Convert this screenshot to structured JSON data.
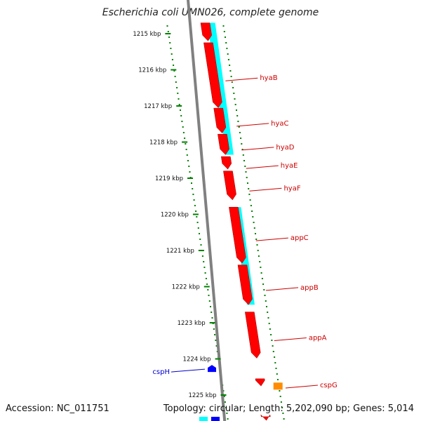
{
  "title": "Escherichia coli UMN026, complete genome",
  "footer": {
    "accession": "Accession: NC_011751",
    "summary": "Topology: circular; Length: 5,202,090 bp; Genes: 5,014"
  },
  "colors": {
    "cds": "#ff0000",
    "cds_alt": "#ff8c00",
    "blast_hit": "#00ffff",
    "blue_feature": "#0000ff",
    "backbone": "#808080",
    "ticks": "#008000",
    "label": "#cc0000",
    "label_alt": "#0000cc"
  },
  "scale": {
    "start_kbp": 1214.8,
    "end_kbp": 1225.7,
    "ticks": [
      {
        "kbp": 1215,
        "label": "1215 kbp"
      },
      {
        "kbp": 1216,
        "label": "1216 kbp"
      },
      {
        "kbp": 1217,
        "label": "1217 kbp"
      },
      {
        "kbp": 1218,
        "label": "1218 kbp"
      },
      {
        "kbp": 1219,
        "label": "1219 kbp"
      },
      {
        "kbp": 1220,
        "label": "1220 kbp"
      },
      {
        "kbp": 1221,
        "label": "1221 kbp"
      },
      {
        "kbp": 1222,
        "label": "1222 kbp"
      },
      {
        "kbp": 1223,
        "label": "1223 kbp"
      },
      {
        "kbp": 1224,
        "label": "1224 kbp"
      },
      {
        "kbp": 1225,
        "label": "1225 kbp"
      }
    ]
  },
  "genes": [
    {
      "name": "",
      "start": 1214.7,
      "end": 1215.2,
      "strand": "-"
    },
    {
      "name": "hyaB",
      "start": 1215.25,
      "end": 1217.05,
      "strand": "-"
    },
    {
      "name": "hyaC",
      "start": 1217.06,
      "end": 1217.75,
      "strand": "-"
    },
    {
      "name": "hyaD",
      "start": 1217.78,
      "end": 1218.35,
      "strand": "-"
    },
    {
      "name": "hyaE",
      "start": 1218.4,
      "end": 1218.75,
      "strand": "-"
    },
    {
      "name": "hyaF",
      "start": 1218.8,
      "end": 1219.6,
      "strand": "-"
    },
    {
      "name": "appC",
      "start": 1219.8,
      "end": 1221.35,
      "strand": "-"
    },
    {
      "name": "appB",
      "start": 1221.4,
      "end": 1222.5,
      "strand": "-"
    },
    {
      "name": "appA",
      "start": 1222.7,
      "end": 1223.98,
      "strand": "-"
    },
    {
      "name": "cspG",
      "start": 1224.55,
      "end": 1224.75,
      "strand": "-"
    },
    {
      "name": "",
      "start": 1225.6,
      "end": 1225.7,
      "strand": "-"
    }
  ],
  "alt_genes": [
    {
      "name": "",
      "start": 1224.5,
      "end": 1224.75
    }
  ],
  "blast_hits": [
    {
      "start": 1214.7,
      "end": 1218.35
    },
    {
      "start": 1219.8,
      "end": 1222.5
    }
  ],
  "reverse_features": [
    {
      "name": "cspH",
      "start": 1224.05,
      "end": 1224.25
    }
  ],
  "labels": [
    {
      "text": "hyaB",
      "gene": "hyaB"
    },
    {
      "text": "hyaC",
      "gene": "hyaC"
    },
    {
      "text": "hyaD",
      "gene": "hyaD"
    },
    {
      "text": "hyaE",
      "gene": "hyaE"
    },
    {
      "text": "hyaF",
      "gene": "hyaF"
    },
    {
      "text": "appC",
      "gene": "appC"
    },
    {
      "text": "appB",
      "gene": "appB"
    },
    {
      "text": "appA",
      "gene": "appA"
    },
    {
      "text": "cspG",
      "gene": "cspG"
    },
    {
      "text": "cspH",
      "gene": "cspH"
    }
  ]
}
